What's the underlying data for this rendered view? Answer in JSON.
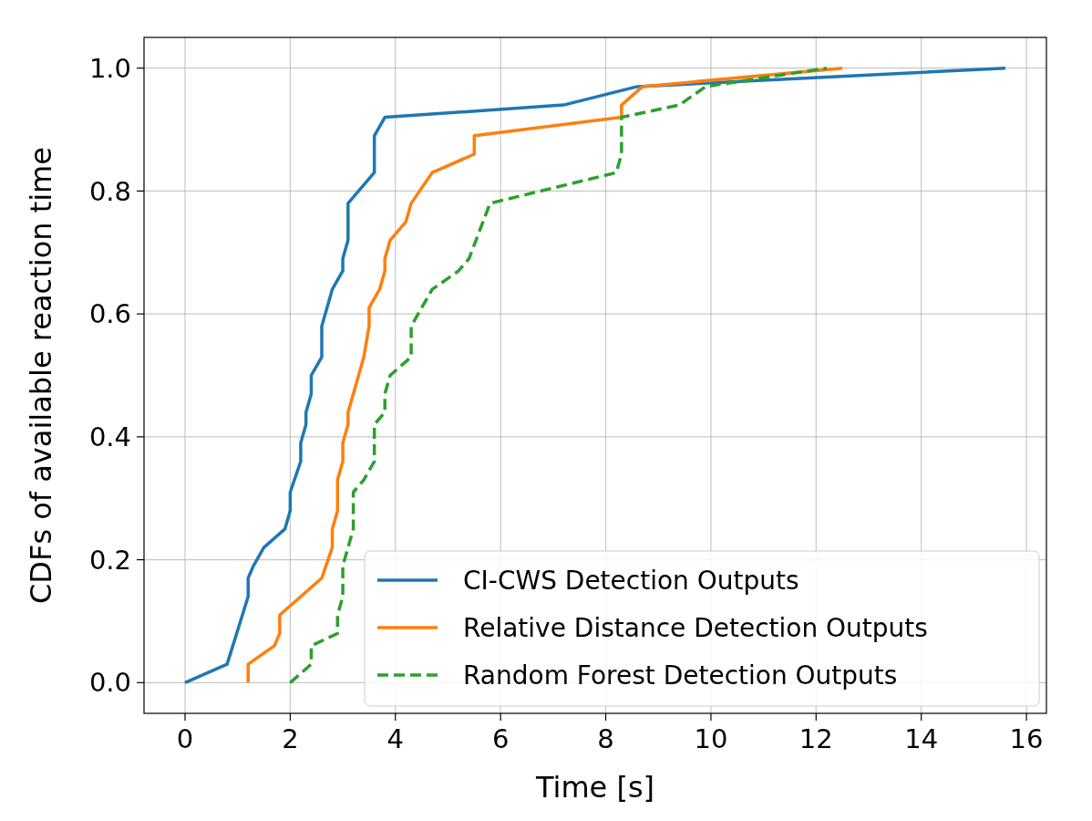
{
  "chart_data": {
    "type": "line",
    "xlabel": "Time [s]",
    "ylabel": "CDFs of available reaction time",
    "xlim": [
      -0.78,
      16.38
    ],
    "xticks": [
      0,
      2,
      4,
      6,
      8,
      10,
      12,
      14,
      16
    ],
    "ylim": [
      -0.05,
      1.05
    ],
    "yticks": [
      {
        "value": 0,
        "label": "0.0"
      },
      {
        "value": 0.2,
        "label": "0.2"
      },
      {
        "value": 0.4,
        "label": "0.4"
      },
      {
        "value": 0.6,
        "label": "0.6"
      },
      {
        "value": 0.8,
        "label": "0.8"
      },
      {
        "value": 1,
        "label": "1.0"
      }
    ],
    "grid": true,
    "legend": "bottom right",
    "series": [
      {
        "name": "CI-CWS Detection Outputs",
        "color": "#1f77b4",
        "line_style": "solid",
        "x": [
          0,
          0.8,
          1.2,
          1.2,
          1.3,
          1.5,
          1.9,
          2.0,
          2.0,
          2.2,
          2.2,
          2.3,
          2.3,
          2.4,
          2.4,
          2.6,
          2.6,
          2.8,
          3.0,
          3.0,
          3.1,
          3.1,
          3.4,
          3.6,
          3.6,
          3.8,
          7.2,
          8.6,
          15.6
        ],
        "values": [
          0,
          0.03,
          0.14,
          0.17,
          0.19,
          0.22,
          0.25,
          0.28,
          0.31,
          0.36,
          0.39,
          0.42,
          0.44,
          0.47,
          0.5,
          0.53,
          0.58,
          0.64,
          0.67,
          0.69,
          0.72,
          0.78,
          0.81,
          0.83,
          0.89,
          0.92,
          0.94,
          0.97,
          1.0
        ]
      },
      {
        "name": "Relative Distance Detection Outputs",
        "color": "#ff7f0e",
        "line_style": "solid",
        "x": [
          1.2,
          1.2,
          1.7,
          1.8,
          1.8,
          2.6,
          2.8,
          2.8,
          2.9,
          2.9,
          3.0,
          3.0,
          3.1,
          3.1,
          3.4,
          3.5,
          3.5,
          3.7,
          3.8,
          3.8,
          3.9,
          4.2,
          4.3,
          4.7,
          5.5,
          5.5,
          8.3,
          8.3,
          8.7,
          12.5
        ],
        "values": [
          0,
          0.03,
          0.06,
          0.08,
          0.11,
          0.17,
          0.22,
          0.25,
          0.28,
          0.33,
          0.36,
          0.39,
          0.42,
          0.44,
          0.53,
          0.58,
          0.61,
          0.64,
          0.67,
          0.69,
          0.72,
          0.75,
          0.78,
          0.83,
          0.86,
          0.89,
          0.92,
          0.94,
          0.97,
          1.0
        ]
      },
      {
        "name": "Random Forest Detection Outputs",
        "color": "#2ca02c",
        "line_style": "dashed",
        "x": [
          2.0,
          2.4,
          2.4,
          2.9,
          2.9,
          3.0,
          3.0,
          3.2,
          3.2,
          3.4,
          3.6,
          3.6,
          3.8,
          3.8,
          3.9,
          4.3,
          4.3,
          4.7,
          5.2,
          5.4,
          5.8,
          8.2,
          8.3,
          8.3,
          9.4,
          9.9,
          12.2
        ],
        "values": [
          0,
          0.03,
          0.06,
          0.08,
          0.11,
          0.14,
          0.19,
          0.25,
          0.31,
          0.33,
          0.36,
          0.42,
          0.44,
          0.47,
          0.5,
          0.53,
          0.58,
          0.64,
          0.67,
          0.69,
          0.78,
          0.83,
          0.86,
          0.92,
          0.94,
          0.97,
          1.0
        ]
      }
    ]
  }
}
